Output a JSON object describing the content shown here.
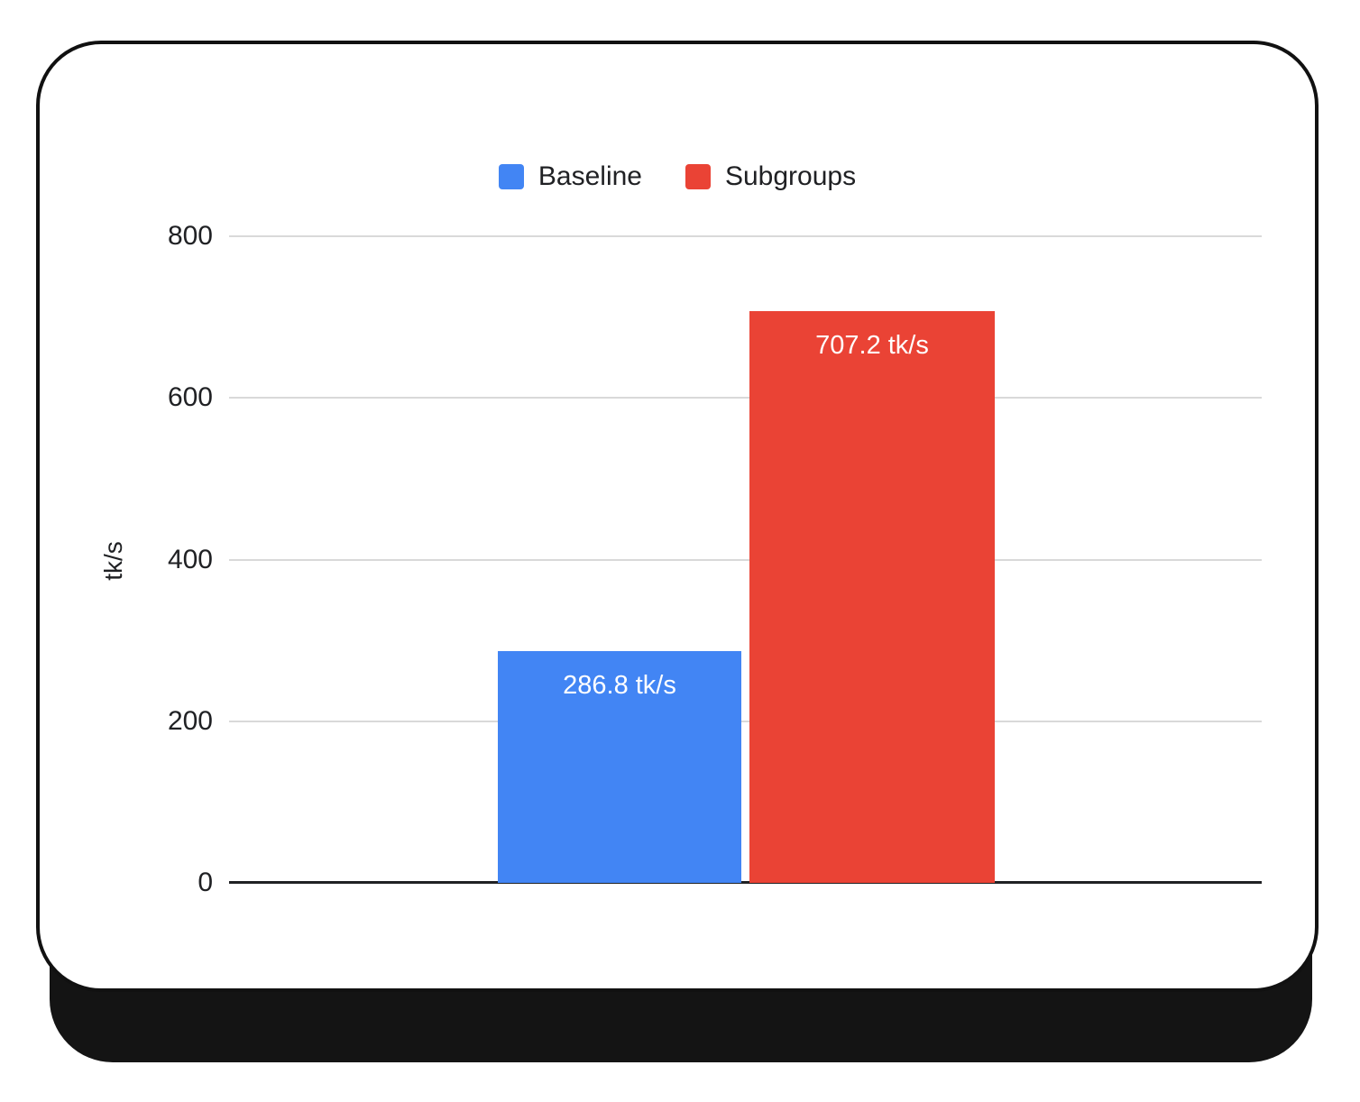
{
  "chart_data": {
    "type": "bar",
    "title": "",
    "xlabel": "",
    "ylabel": "tk/s",
    "ylim": [
      0,
      800
    ],
    "yticks": [
      0,
      200,
      400,
      600,
      800
    ],
    "grid": true,
    "legend_position": "top",
    "categories": [
      ""
    ],
    "series": [
      {
        "name": "Baseline",
        "value": 286.8,
        "label": "286.8 tk/s",
        "color": "#4285F4"
      },
      {
        "name": "Subgroups",
        "value": 707.2,
        "label": "707.2 tk/s",
        "color": "#EA4335"
      }
    ]
  }
}
